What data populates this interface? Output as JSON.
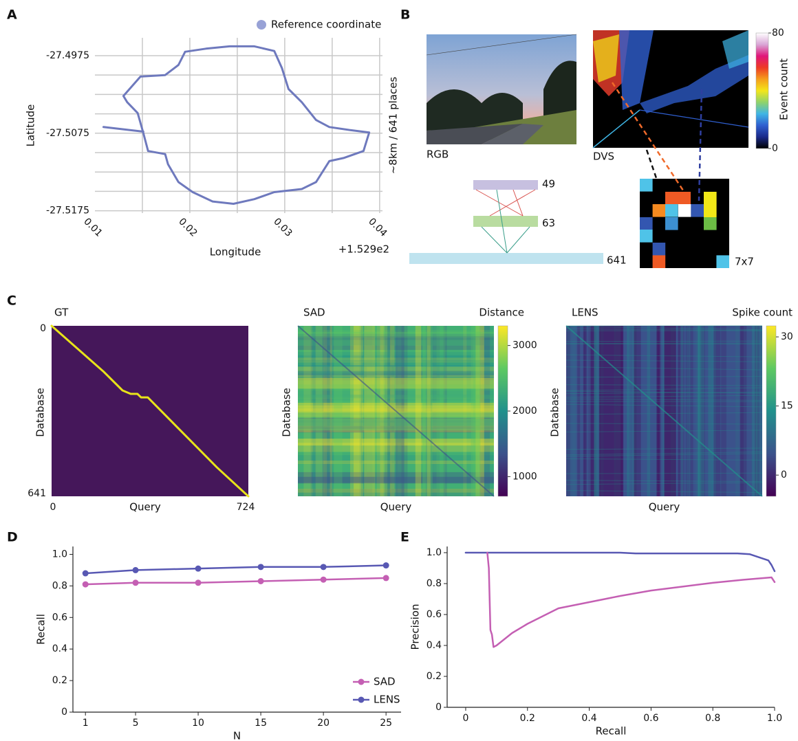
{
  "chart_data": [
    {
      "label": "A",
      "type": "line",
      "xlabel": "Longitude",
      "ylabel": "Latitude",
      "x_offset_text": "+1.529e2",
      "annotation": "~8km / 641 places",
      "xlim": [
        0.01,
        0.0403
      ],
      "ylim": [
        -27.5178,
        -27.4952
      ],
      "xticks": [
        0.01,
        0.02,
        0.03,
        0.04
      ],
      "yticks": [
        -27.5175,
        -27.5075,
        -27.4975
      ],
      "grid": true,
      "xgrid": [
        0.015,
        0.02,
        0.025,
        0.03,
        0.035,
        0.04
      ],
      "ygrid": [
        -27.5175,
        -27.515,
        -27.5125,
        -27.51,
        -27.5075,
        -27.505,
        -27.5025,
        -27.5,
        -27.4975
      ],
      "legend": "upper right",
      "series": [
        {
          "name": "Reference coordinate",
          "color": "#6e79bd",
          "marker_color": "#98a2d6",
          "x": [
            0.0195,
            0.0217,
            0.0242,
            0.0268,
            0.0289,
            0.0297,
            0.0304,
            0.0318,
            0.0333,
            0.0347,
            0.0369,
            0.0389,
            0.0383,
            0.0362,
            0.0347,
            0.0333,
            0.0318,
            0.0289,
            0.0268,
            0.0246,
            0.0224,
            0.0203,
            0.0188,
            0.0177,
            0.0174,
            0.0156,
            0.0151,
            0.0145,
            0.0134,
            0.013,
            0.0148,
            0.0174,
            0.0188,
            0.0195,
            null,
            0.0109,
            0.0151
          ],
          "values": [
            -27.497,
            -27.4966,
            -27.4963,
            -27.4963,
            -27.4969,
            -27.4991,
            -27.5018,
            -27.5035,
            -27.5058,
            -27.5067,
            -27.5071,
            -27.5074,
            -27.5098,
            -27.5107,
            -27.5111,
            -27.5138,
            -27.5147,
            -27.5151,
            -27.516,
            -27.5166,
            -27.5163,
            -27.5151,
            -27.5138,
            -27.5115,
            -27.5102,
            -27.5098,
            -27.5075,
            -27.5049,
            -27.5035,
            -27.5027,
            -27.5002,
            -27.5,
            -27.4987,
            -27.497,
            null,
            -27.5067,
            -27.5073
          ]
        }
      ]
    },
    {
      "label": "B",
      "type": "image",
      "images": [
        "RGB",
        "DVS"
      ],
      "colorbar_label": "Event count",
      "clim": [
        0,
        80
      ],
      "cticks": [
        0,
        80
      ],
      "colormap": [
        "#000000",
        "#1b2a8a",
        "#2f5fd0",
        "#3fb5e5",
        "#8fd36b",
        "#f3e61a",
        "#f59e1c",
        "#ee3b24",
        "#e0157a",
        "#d9a6d6",
        "#ffffff"
      ],
      "layers": [
        49,
        63,
        641
      ],
      "grid_label": "7x7"
    },
    {
      "label": "C",
      "type": "heatmap",
      "title": "GT",
      "xlabel": "Query",
      "ylabel": "Database",
      "xlim": [
        0,
        724
      ],
      "ylim": [
        0,
        641
      ],
      "xticks": [
        0,
        724
      ],
      "yticks": [
        0,
        641
      ],
      "background": "#45175a",
      "series": [
        {
          "color": "#e8e419",
          "x": [
            0,
            190,
            261,
            291,
            316,
            329,
            354,
            608,
            724
          ],
          "values": [
            0,
            171,
            243,
            256,
            256,
            269,
            269,
            532,
            641
          ]
        }
      ]
    },
    {
      "type": "heatmap",
      "title": "SAD",
      "xlabel": "Query",
      "ylabel": "Database",
      "colorbar_label": "Distance",
      "clim": [
        700,
        3300
      ],
      "cticks": [
        1000,
        2000,
        3000
      ],
      "colormap": [
        "#440154",
        "#3b528b",
        "#21918c",
        "#5ec962",
        "#fde725"
      ]
    },
    {
      "type": "heatmap",
      "title": "LENS",
      "xlabel": "Query",
      "ylabel": "Database",
      "colorbar_label": "Spike count",
      "clim": [
        -4.6,
        32.4
      ],
      "cticks": [
        0,
        15,
        30
      ],
      "colormap": [
        "#440154",
        "#3b528b",
        "#21918c",
        "#5ec962",
        "#fde725"
      ]
    },
    {
      "label": "D",
      "type": "line",
      "xlabel": "N",
      "ylabel": "Recall",
      "x": [
        1,
        5,
        10,
        15,
        20,
        25
      ],
      "xlim": [
        0,
        26.2
      ],
      "ylim": [
        0,
        1.05
      ],
      "xticks": [
        1,
        5,
        10,
        15,
        20,
        25
      ],
      "yticks": [
        0,
        0.2,
        0.4,
        0.6,
        0.8,
        {
          "value": 1,
          "label": "1.0"
        }
      ],
      "markers": true,
      "legend": "lower right",
      "series": [
        {
          "name": "SAD",
          "color": "#c45fb3",
          "values": [
            0.81,
            0.82,
            0.82,
            0.83,
            0.84,
            0.85
          ]
        },
        {
          "name": "LENS",
          "color": "#5858b3",
          "values": [
            0.88,
            0.9,
            0.91,
            0.92,
            0.92,
            0.93
          ]
        }
      ]
    },
    {
      "label": "E",
      "type": "line",
      "xlabel": "Recall",
      "ylabel": "Precision",
      "xlim": [
        -0.06,
        1
      ],
      "ylim": [
        0,
        1.04
      ],
      "xticks": [
        0,
        0.2,
        0.4,
        0.6,
        0.8,
        {
          "value": 1,
          "label": "1.0"
        }
      ],
      "yticks": [
        0,
        0.2,
        0.4,
        0.6,
        0.8,
        {
          "value": 1,
          "label": "1.0"
        }
      ],
      "series": [
        {
          "color": "#5858b3",
          "x": [
            0,
            0.07,
            0.5,
            0.55,
            0.88,
            0.92,
            0.95,
            0.98,
            0.99,
            1
          ],
          "values": [
            1,
            1,
            1,
            0.995,
            0.995,
            0.99,
            0.97,
            0.95,
            0.92,
            0.88
          ]
        },
        {
          "color": "#c45fb3",
          "x": [
            0.07,
            0.075,
            0.08,
            0.085,
            0.09,
            0.1,
            0.15,
            0.2,
            0.3,
            0.4,
            0.5,
            0.6,
            0.7,
            0.8,
            0.9,
            0.99,
            1
          ],
          "values": [
            1,
            0.9,
            0.5,
            0.47,
            0.39,
            0.4,
            0.48,
            0.54,
            0.64,
            0.68,
            0.72,
            0.755,
            0.78,
            0.805,
            0.825,
            0.84,
            0.81
          ]
        }
      ]
    }
  ]
}
